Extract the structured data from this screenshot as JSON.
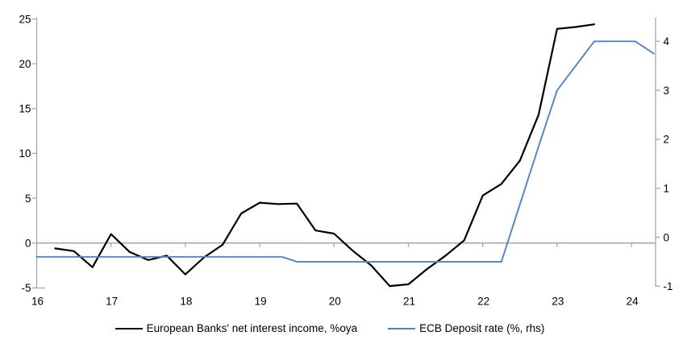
{
  "chart_data": {
    "type": "line",
    "title": "",
    "x_axis": {
      "ticks": [
        16,
        17,
        18,
        19,
        20,
        21,
        22,
        23,
        24
      ],
      "range": [
        16,
        24.33
      ],
      "tick_position": "on-zero-line",
      "label_position": "bottom"
    },
    "left_axis": {
      "ticks": [
        -5,
        0,
        5,
        10,
        15,
        20,
        25
      ],
      "range": [
        -5,
        25
      ]
    },
    "right_axis": {
      "ticks": [
        -1,
        0,
        1,
        2,
        3,
        4
      ],
      "range": [
        -1,
        4.5
      ]
    },
    "grid": "zero-line-only",
    "legend_position": "bottom-center",
    "colors": {
      "axis_gray": "#a8a8a8",
      "text": "#000000"
    },
    "series": [
      {
        "name": "European Banks' net interest income, %oya",
        "axis": "left",
        "color": "#000000",
        "x": [
          16.25,
          16.5,
          16.75,
          17.0,
          17.25,
          17.5,
          17.75,
          18.0,
          18.25,
          18.5,
          18.75,
          19.0,
          19.25,
          19.5,
          19.75,
          20.0,
          20.25,
          20.5,
          20.75,
          21.0,
          21.25,
          21.5,
          21.75,
          22.0,
          22.25,
          22.5,
          22.75,
          23.0,
          23.25,
          23.5
        ],
        "values": [
          -0.6,
          -0.9,
          -2.7,
          1.0,
          -1.0,
          -1.9,
          -1.4,
          -3.5,
          -1.6,
          -0.2,
          3.3,
          4.5,
          4.35,
          4.4,
          1.4,
          1.05,
          -0.85,
          -2.5,
          -4.8,
          -4.6,
          -2.9,
          -1.4,
          0.3,
          5.3,
          6.6,
          9.2,
          14.3,
          23.9,
          24.1,
          24.4
        ]
      },
      {
        "name": "ECB Deposit rate (%, rhs)",
        "axis": "right",
        "color": "#4e84c4",
        "x": [
          16.0,
          19.3,
          19.5,
          22.25,
          22.75,
          23.0,
          23.5,
          24.05,
          24.3
        ],
        "values": [
          -0.4,
          -0.4,
          -0.5,
          -0.5,
          1.85,
          3.0,
          4.0,
          4.0,
          3.75
        ]
      }
    ]
  }
}
